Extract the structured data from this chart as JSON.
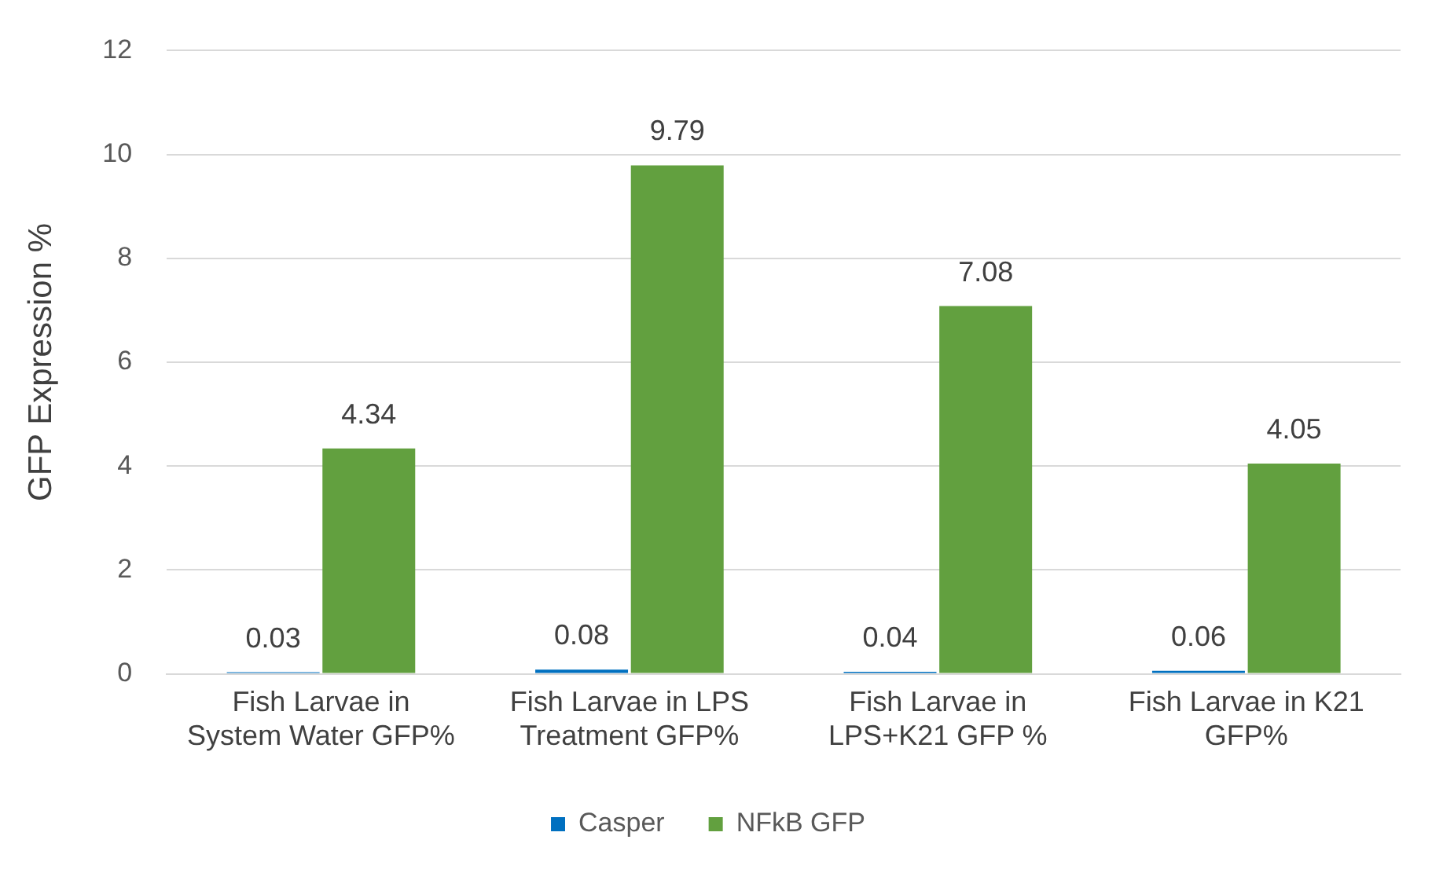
{
  "chart_data": {
    "type": "bar",
    "ylabel": "GFP Expression %",
    "categories": [
      "Fish Larvae in System Water GFP%",
      "Fish Larvae in LPS Treatment GFP%",
      "Fish Larvae in LPS+K21 GFP %",
      "Fish Larvae in K21 GFP%"
    ],
    "series": [
      {
        "name": "Casper",
        "color": "#0070c0",
        "values": [
          0.03,
          0.08,
          0.04,
          0.06
        ]
      },
      {
        "name": "NFkB GFP",
        "color": "#62a03f",
        "values": [
          4.34,
          9.79,
          7.08,
          4.05
        ]
      }
    ],
    "ylim": [
      0,
      12
    ],
    "yticks": [
      0,
      2,
      4,
      6,
      8,
      10,
      12
    ],
    "grid": "y",
    "legend": "bottom",
    "data_labels": true
  }
}
